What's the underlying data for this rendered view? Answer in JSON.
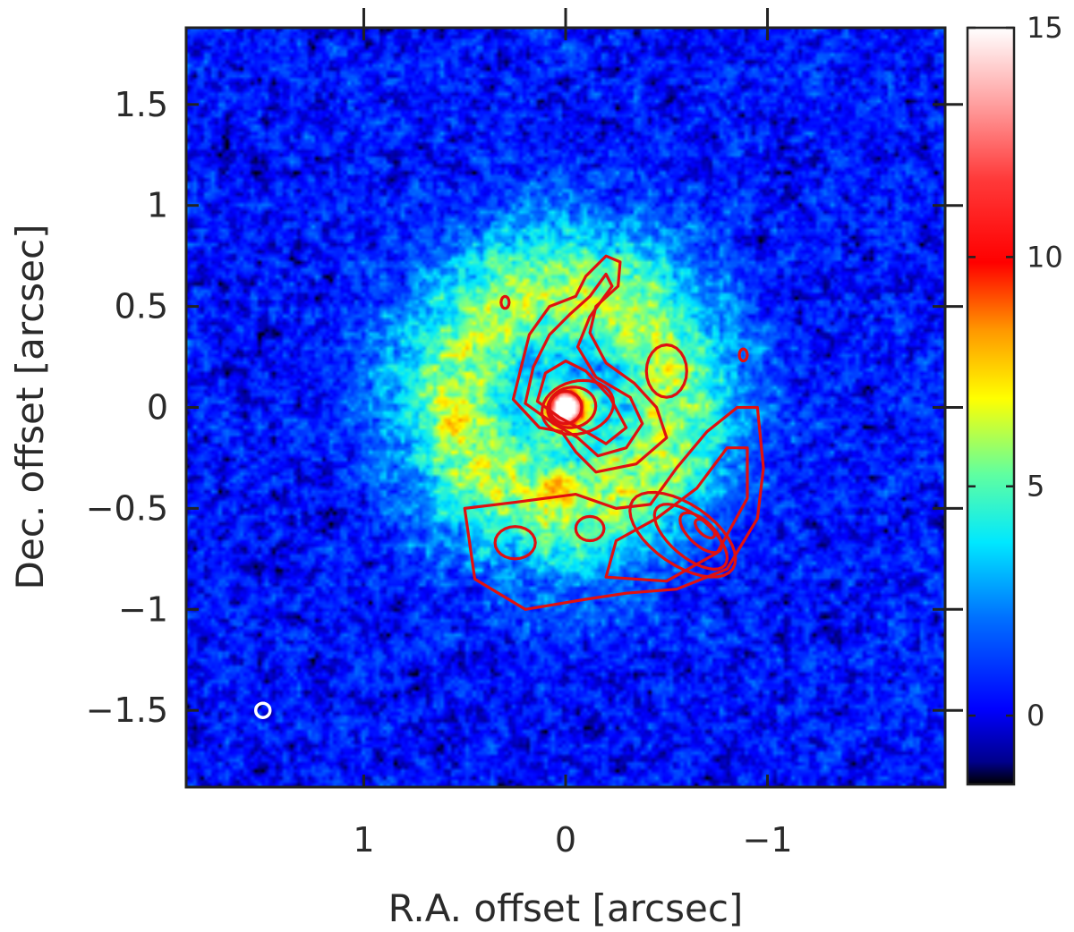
{
  "chart_data": {
    "type": "heatmap",
    "xlabel": "R.A. offset [arcsec]",
    "ylabel": "Dec. offset [arcsec]",
    "xlim": [
      1.88,
      -1.88
    ],
    "ylim": [
      -1.88,
      1.88
    ],
    "x_axis_reversed": true,
    "x_ticks": [
      1,
      0,
      -1
    ],
    "x_tick_labels": [
      "1",
      "0",
      "−1"
    ],
    "y_ticks": [
      -1.5,
      -1,
      -0.5,
      0,
      0.5,
      1,
      1.5
    ],
    "y_tick_labels": [
      "−1.5",
      "−1",
      "−0.5",
      "0",
      "0.5",
      "1",
      "1.5"
    ],
    "colorbar": {
      "range": [
        -1.5,
        15
      ],
      "ticks": [
        0,
        5,
        10,
        15
      ],
      "tick_labels": [
        "0",
        "5",
        "10",
        "15"
      ],
      "colormap": "jet-to-white"
    },
    "image_features": [
      {
        "kind": "ring",
        "center": [
          0.0,
          0.05
        ],
        "radius": 0.85,
        "width": 0.28,
        "peak_value": 6
      },
      {
        "kind": "central-peak",
        "center": [
          0.0,
          0.0
        ],
        "peak_value": 15
      },
      {
        "kind": "background-noise",
        "mean_value": 0.5
      }
    ],
    "contours": {
      "color": "#e01010",
      "levels": 5,
      "components": [
        {
          "kind": "central-peak",
          "center": [
            0.0,
            0.0
          ]
        },
        {
          "kind": "northern-arc",
          "extent_y": [
            0.0,
            0.75
          ]
        },
        {
          "kind": "southwest-arc-peak",
          "center": [
            -0.68,
            -0.6
          ]
        },
        {
          "kind": "southern-lobe",
          "center": [
            0.25,
            -0.65
          ]
        }
      ]
    },
    "beam": {
      "center": [
        1.5,
        -1.5
      ],
      "color": "#ffffff"
    }
  }
}
